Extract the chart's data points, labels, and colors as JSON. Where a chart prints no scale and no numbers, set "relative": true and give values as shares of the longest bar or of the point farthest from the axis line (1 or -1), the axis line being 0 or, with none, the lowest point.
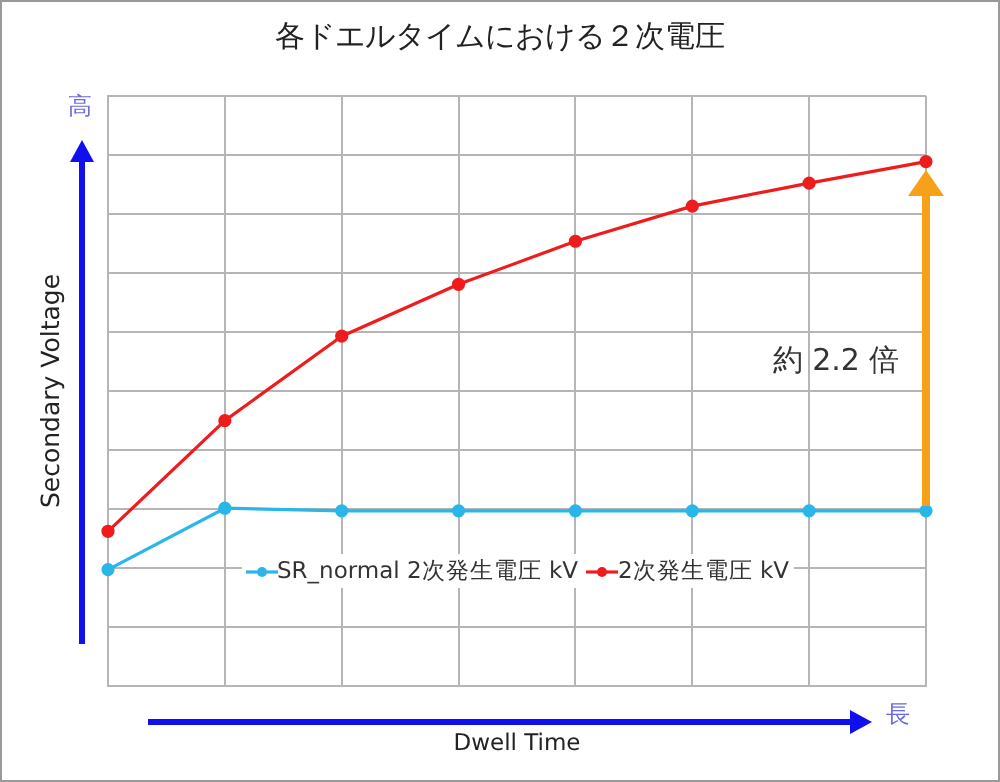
{
  "chart_data": {
    "type": "line",
    "title": "各ドエルタイムにおける２次電圧",
    "xlabel": "Dwell Time",
    "ylabel": "Secondary Voltage",
    "relative": true,
    "grid": true,
    "legend": "bottom",
    "marker": "circle",
    "line_style": "solid",
    "categories": [
      null,
      null,
      null,
      null,
      null,
      null,
      null,
      null
    ],
    "series": [
      {
        "name": "SR_normal 2次発生電圧 kV",
        "color": "#29b6e8",
        "values": [
          0.222,
          0.339,
          0.334,
          0.334,
          0.334,
          0.334,
          0.334,
          0.334
        ]
      },
      {
        "name": "2次発生電圧 kV",
        "color": "#ee1c1c",
        "values": [
          0.295,
          0.506,
          0.667,
          0.766,
          0.848,
          0.915,
          0.959,
          1
        ]
      }
    ],
    "annotations": [
      "約 2.2 倍",
      "高",
      "長"
    ]
  }
}
